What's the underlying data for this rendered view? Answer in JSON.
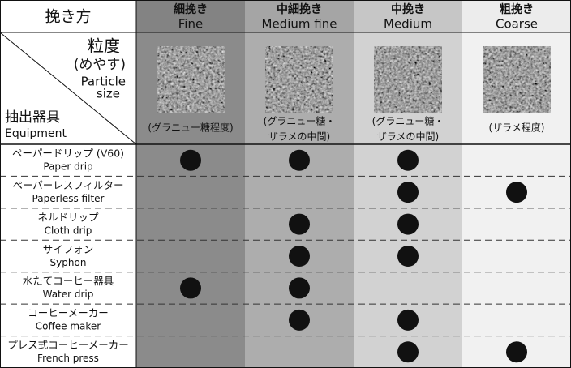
{
  "header": {
    "method_label": "挽き方",
    "columns": [
      {
        "jp": "細挽き",
        "en": "Fine",
        "caption": [
          "(グラニュー糖程度)"
        ]
      },
      {
        "jp": "中細挽き",
        "en": "Medium fine",
        "caption": [
          "(グラニュー糖・",
          "ザラメの中間)"
        ]
      },
      {
        "jp": "中挽き",
        "en": "Medium",
        "caption": [
          "(グラニュー糖・",
          "ザラメの中間)"
        ]
      },
      {
        "jp": "粗挽き",
        "en": "Coarse",
        "caption": [
          "(ザラメ程度)"
        ]
      }
    ],
    "particle_jp": "粒度",
    "particle_note": "(めやす)",
    "particle_en": [
      "Particle",
      "size"
    ],
    "equipment_jp": "抽出器具",
    "equipment_en": "Equipment"
  },
  "rows": [
    {
      "jp": "ペーパードリップ (V60)",
      "en": "Paper drip",
      "marks": [
        true,
        true,
        true,
        false
      ]
    },
    {
      "jp": "ペーパーレスフィルター",
      "en": "Paperless filter",
      "marks": [
        false,
        false,
        true,
        true
      ]
    },
    {
      "jp": "ネルドリップ",
      "en": "Cloth drip",
      "marks": [
        false,
        true,
        true,
        false
      ]
    },
    {
      "jp": "サイフォン",
      "en": "Syphon",
      "marks": [
        false,
        true,
        true,
        false
      ]
    },
    {
      "jp": "水たてコーヒー器具",
      "en": "Water drip",
      "marks": [
        true,
        true,
        false,
        false
      ]
    },
    {
      "jp": "コーヒーメーカー",
      "en": "Coffee maker",
      "marks": [
        false,
        true,
        true,
        false
      ]
    },
    {
      "jp": "プレス式コーヒーメーカー",
      "en": "French press",
      "marks": [
        false,
        false,
        true,
        true
      ]
    }
  ]
}
